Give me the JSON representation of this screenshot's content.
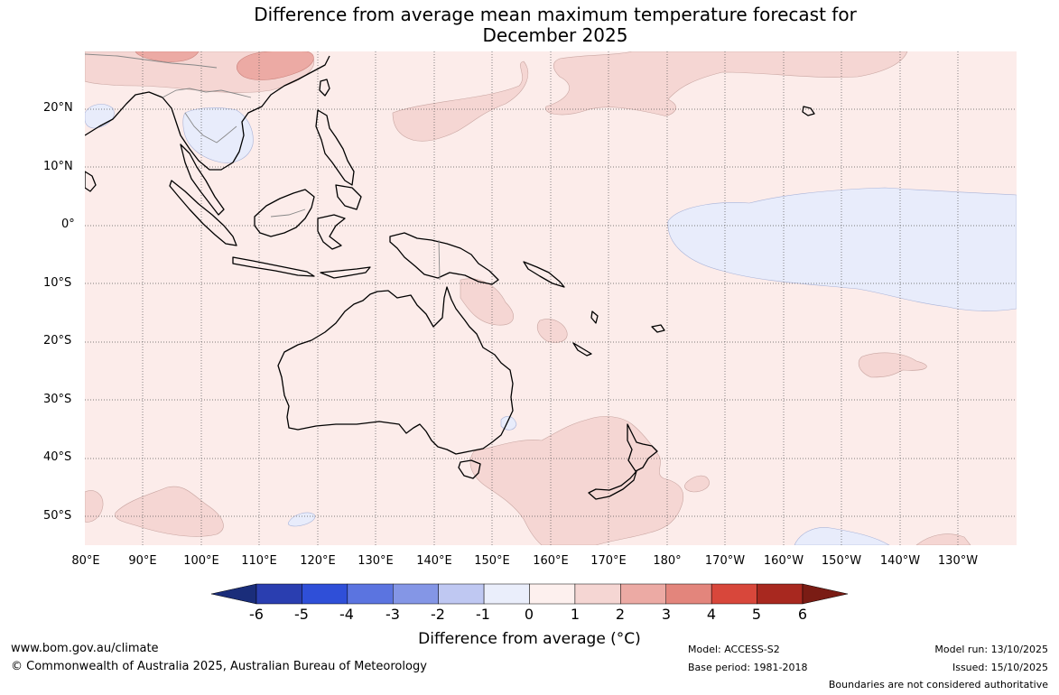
{
  "title": {
    "line1": "Difference from average mean maximum temperature forecast for",
    "line2": "December 2025"
  },
  "map": {
    "lat_labels": [
      "20°N",
      "10°N",
      "0°",
      "10°S",
      "20°S",
      "30°S",
      "40°S",
      "50°S"
    ],
    "lon_labels": [
      "80°E",
      "90°E",
      "100°E",
      "110°E",
      "120°E",
      "130°E",
      "140°E",
      "150°E",
      "160°E",
      "170°E",
      "180°",
      "170°W",
      "160°W",
      "150°W",
      "140°W",
      "130°W"
    ],
    "regions": [
      "Australia",
      "New Zealand",
      "Papua New Guinea",
      "Indonesia",
      "Philippines",
      "Southeast Asia",
      "Pacific Ocean"
    ]
  },
  "colorbar": {
    "ticks": [
      "-6",
      "-5",
      "-4",
      "-3",
      "-2",
      "-1",
      "0",
      "1",
      "2",
      "3",
      "4",
      "5",
      "6"
    ],
    "colors": [
      "#1a2d7a",
      "#2a3eb0",
      "#2f4fd8",
      "#5b74e0",
      "#8496e6",
      "#bfc8f2",
      "#eaeefb",
      "#fdf0ee",
      "#f5d6d3",
      "#ecaaa4",
      "#e3857c",
      "#d8473b",
      "#a8281f",
      "#7a1c14"
    ],
    "label": "Difference from average (°C)"
  },
  "footer": {
    "website": "www.bom.gov.au/climate",
    "copyright": "© Commonwealth of Australia 2025, Australian Bureau of Meteorology",
    "model": "Model: ACCESS-S2",
    "base_period": "Base period: 1981-2018",
    "model_run": "Model run: 13/10/2025",
    "issued": "Issued: 15/10/2025",
    "disclaimer": "Boundaries are not considered authoritative"
  }
}
